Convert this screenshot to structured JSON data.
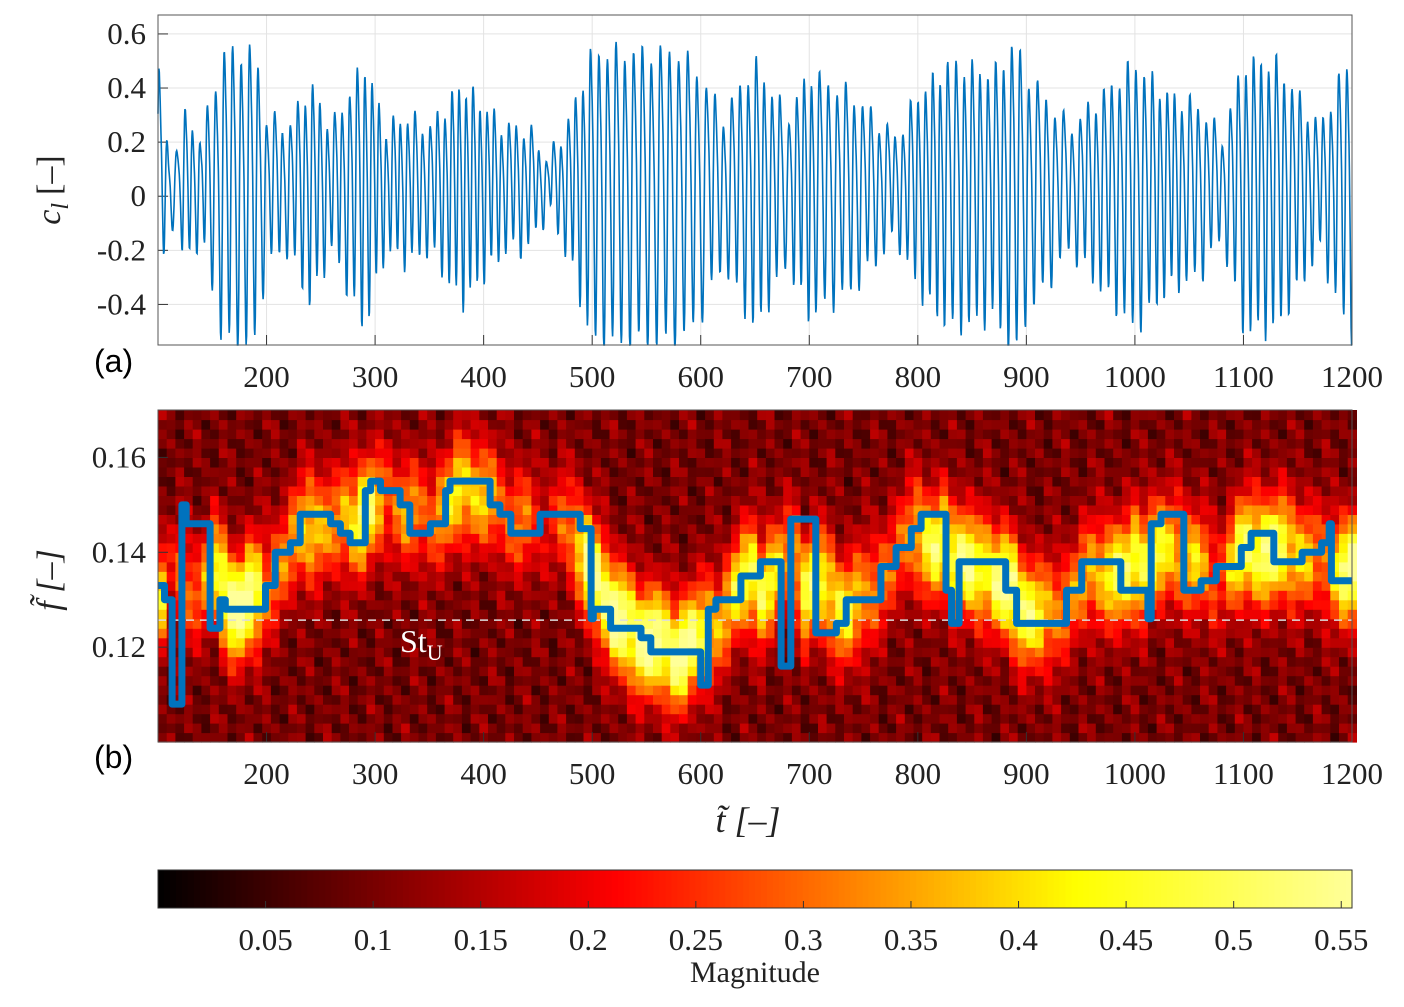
{
  "chart_data": [
    {
      "type": "line",
      "panel_label": "(a)",
      "ylabel_symbol": "c",
      "ylabel_sub": "l",
      "ylabel_unit": "[–]",
      "xlim": [
        100,
        1200
      ],
      "ylim": [
        -0.55,
        0.67
      ],
      "xticks": [
        "200",
        "300",
        "400",
        "500",
        "600",
        "700",
        "800",
        "900",
        "1000",
        "1100",
        "1200"
      ],
      "yticks": [
        "-0.4",
        "-0.2",
        "0",
        "0.2",
        "0.4",
        "0.6"
      ],
      "grid": true,
      "line_color": "#0072BD",
      "description_of_series": "lift coefficient oscillation; amplitude envelope [t, amplitude] and carrier frequency from ridge of panel (b)",
      "envelope": [
        [
          100,
          0.55
        ],
        [
          110,
          0.1
        ],
        [
          125,
          0.3
        ],
        [
          140,
          0.2
        ],
        [
          160,
          0.6
        ],
        [
          190,
          0.6
        ],
        [
          200,
          0.3
        ],
        [
          220,
          0.25
        ],
        [
          240,
          0.45
        ],
        [
          260,
          0.25
        ],
        [
          290,
          0.55
        ],
        [
          310,
          0.25
        ],
        [
          330,
          0.3
        ],
        [
          350,
          0.25
        ],
        [
          380,
          0.45
        ],
        [
          400,
          0.35
        ],
        [
          420,
          0.25
        ],
        [
          440,
          0.25
        ],
        [
          460,
          0.1
        ],
        [
          480,
          0.3
        ],
        [
          500,
          0.6
        ],
        [
          550,
          0.6
        ],
        [
          580,
          0.6
        ],
        [
          600,
          0.5
        ],
        [
          620,
          0.3
        ],
        [
          650,
          0.55
        ],
        [
          680,
          0.3
        ],
        [
          700,
          0.5
        ],
        [
          740,
          0.4
        ],
        [
          780,
          0.2
        ],
        [
          800,
          0.4
        ],
        [
          830,
          0.55
        ],
        [
          870,
          0.5
        ],
        [
          890,
          0.65
        ],
        [
          900,
          0.5
        ],
        [
          940,
          0.25
        ],
        [
          960,
          0.35
        ],
        [
          1000,
          0.55
        ],
        [
          1030,
          0.4
        ],
        [
          1060,
          0.35
        ],
        [
          1080,
          0.2
        ],
        [
          1100,
          0.55
        ],
        [
          1130,
          0.55
        ],
        [
          1150,
          0.4
        ],
        [
          1170,
          0.25
        ],
        [
          1200,
          0.6
        ]
      ]
    },
    {
      "type": "heatmap",
      "panel_label": "(b)",
      "ylabel": "f̃ [–]",
      "xlabel": "t̃ [–]",
      "xlim": [
        100,
        1200
      ],
      "ylim": [
        0.1,
        0.17
      ],
      "xticks": [
        "200",
        "300",
        "400",
        "500",
        "600",
        "700",
        "800",
        "900",
        "1000",
        "1100",
        "1200"
      ],
      "yticks": [
        "0.12",
        "0.14",
        "0.16"
      ],
      "reference_line": {
        "label": "St",
        "label_sub": "U",
        "value": 0.1257,
        "style": "dashed",
        "color": "#dddddd"
      },
      "ridge_color": "#0072BD",
      "ridge_steps": [
        [
          100,
          0.133
        ],
        [
          106,
          0.13
        ],
        [
          113,
          0.108
        ],
        [
          122,
          0.15
        ],
        [
          126,
          0.146
        ],
        [
          148,
          0.124
        ],
        [
          157,
          0.13
        ],
        [
          162,
          0.128
        ],
        [
          199,
          0.133
        ],
        [
          208,
          0.14
        ],
        [
          222,
          0.142
        ],
        [
          231,
          0.148
        ],
        [
          259,
          0.146
        ],
        [
          268,
          0.144
        ],
        [
          277,
          0.142
        ],
        [
          291,
          0.153
        ],
        [
          296,
          0.155
        ],
        [
          305,
          0.153
        ],
        [
          323,
          0.15
        ],
        [
          332,
          0.144
        ],
        [
          351,
          0.146
        ],
        [
          365,
          0.153
        ],
        [
          369,
          0.155
        ],
        [
          406,
          0.15
        ],
        [
          415,
          0.148
        ],
        [
          425,
          0.144
        ],
        [
          452,
          0.148
        ],
        [
          489,
          0.145
        ],
        [
          499,
          0.126
        ],
        [
          501,
          0.128
        ],
        [
          517,
          0.124
        ],
        [
          545,
          0.122
        ],
        [
          554,
          0.119
        ],
        [
          600,
          0.112
        ],
        [
          607,
          0.128
        ],
        [
          614,
          0.13
        ],
        [
          637,
          0.135
        ],
        [
          655,
          0.138
        ],
        [
          674,
          0.116
        ],
        [
          683,
          0.147
        ],
        [
          706,
          0.123
        ],
        [
          725,
          0.125
        ],
        [
          734,
          0.13
        ],
        [
          766,
          0.137
        ],
        [
          780,
          0.141
        ],
        [
          794,
          0.145
        ],
        [
          803,
          0.148
        ],
        [
          826,
          0.132
        ],
        [
          831,
          0.125
        ],
        [
          838,
          0.138
        ],
        [
          881,
          0.132
        ],
        [
          891,
          0.125
        ],
        [
          937,
          0.132
        ],
        [
          951,
          0.138
        ],
        [
          987,
          0.132
        ],
        [
          1012,
          0.126
        ],
        [
          1015,
          0.146
        ],
        [
          1024,
          0.148
        ],
        [
          1045,
          0.132
        ],
        [
          1061,
          0.134
        ],
        [
          1075,
          0.137
        ],
        [
          1098,
          0.141
        ],
        [
          1107,
          0.144
        ],
        [
          1128,
          0.138
        ],
        [
          1154,
          0.14
        ],
        [
          1172,
          0.142
        ],
        [
          1179,
          0.146
        ],
        [
          1181,
          0.134
        ],
        [
          1200,
          0.134
        ]
      ]
    },
    {
      "type": "colorbar",
      "colormap": "hot",
      "label": "Magnitude",
      "range": [
        0,
        0.555
      ],
      "ticks": [
        "0.05",
        "0.1",
        "0.15",
        "0.2",
        "0.25",
        "0.3",
        "0.35",
        "0.4",
        "0.45",
        "0.5",
        "0.55"
      ]
    }
  ]
}
